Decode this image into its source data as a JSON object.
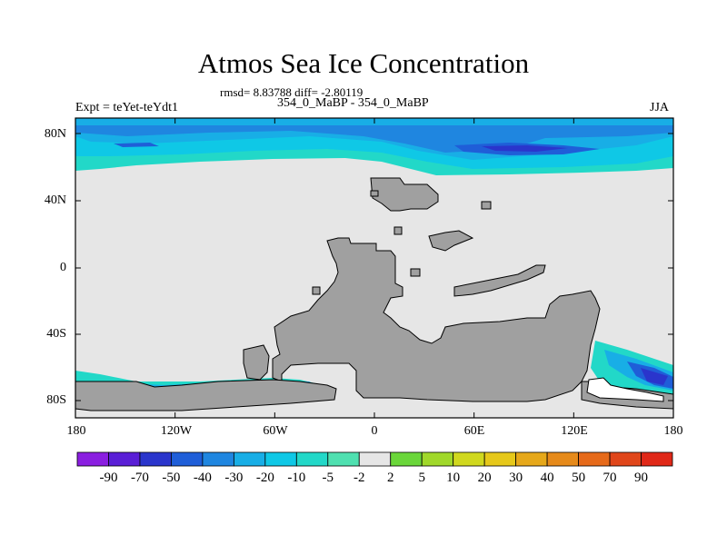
{
  "title": "Atmos Sea Ice Concentration",
  "stats": "rmsd= 8.83788 diff= -2.80119",
  "subtitle": "354_0_MaBP - 354_0_MaBP",
  "expt_label": "Expt = teYet-teYdt1",
  "season": "JJA",
  "lat_ticks": [
    "80N",
    "40N",
    "0",
    "40S",
    "80S"
  ],
  "lon_ticks": [
    "180",
    "120W",
    "60W",
    "0",
    "60E",
    "120E",
    "180"
  ],
  "colorbar": {
    "labels": [
      "-90",
      "-70",
      "-50",
      "-40",
      "-30",
      "-20",
      "-10",
      "-5",
      "-2",
      "2",
      "5",
      "10",
      "20",
      "30",
      "40",
      "50",
      "70",
      "90"
    ],
    "colors": [
      "#8a1ee0",
      "#5a1fd6",
      "#2a35cc",
      "#1f5ed8",
      "#1f86e0",
      "#18aee6",
      "#0fc8e6",
      "#22d8c8",
      "#4fe0b0",
      "#e6e6e6",
      "#6ad63a",
      "#a0d82a",
      "#d0d81e",
      "#e6c81a",
      "#e6a81a",
      "#e68a1a",
      "#e66a1a",
      "#e0461a",
      "#e02818"
    ]
  }
}
